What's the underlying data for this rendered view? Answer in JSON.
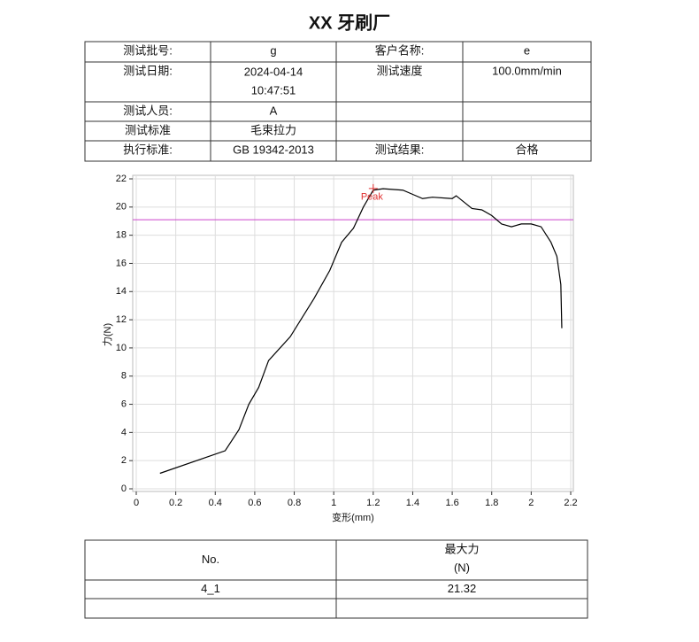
{
  "header": {
    "title": "XX 牙刷厂"
  },
  "info_table": {
    "rows": [
      [
        "测试批号:",
        "g",
        "客户名称:",
        "e"
      ],
      [
        "测试日期:",
        [
          "2024-04-14",
          "10:47:51"
        ],
        "测试速度",
        "100.0mm/min"
      ],
      [
        "测试人员:",
        "A",
        null,
        null
      ],
      [
        "测试标准",
        "毛束拉力",
        null,
        null
      ],
      [
        "执行标准:",
        "GB 19342-2013",
        "测试结果:",
        "合格"
      ]
    ]
  },
  "chart_data": {
    "type": "line",
    "x_label": "变形(mm)",
    "y_label": "力(N)",
    "x": [
      0.12,
      0.45,
      0.52,
      0.57,
      0.62,
      0.67,
      0.78,
      0.9,
      0.98,
      1.04,
      1.1,
      1.15,
      1.2,
      1.25,
      1.35,
      1.4,
      1.45,
      1.5,
      1.6,
      1.62,
      1.7,
      1.75,
      1.8,
      1.85,
      1.9,
      1.95,
      2.0,
      2.05,
      2.1,
      2.13,
      2.15,
      2.155
    ],
    "series": [
      {
        "color": "#000000",
        "values": [
          1.1,
          2.7,
          4.2,
          6,
          7.2,
          9.1,
          10.8,
          13.5,
          15.5,
          17.5,
          18.5,
          20,
          21.2,
          21.3,
          21.2,
          20.9,
          20.6,
          20.7,
          20.6,
          20.8,
          19.9,
          19.8,
          19.4,
          18.8,
          18.6,
          18.8,
          18.8,
          18.6,
          17.5,
          16.5,
          14.5,
          11.4
        ]
      }
    ],
    "reference_line": {
      "value": 19.1,
      "color": "#cc44cc"
    },
    "peak": {
      "label": "Peak",
      "x": 1.2,
      "y": 21.32,
      "color": "#e03030"
    },
    "xlim": [
      0,
      2.2
    ],
    "xticks": [
      0,
      0.2,
      0.4,
      0.6,
      0.8,
      1,
      1.2,
      1.4,
      1.6,
      1.8,
      2,
      2.2
    ],
    "ylim": [
      0,
      22
    ],
    "yticks": [
      0,
      2,
      4,
      6,
      8,
      10,
      12,
      14,
      16,
      18,
      20,
      22
    ],
    "grid": true
  },
  "result_table": {
    "header": [
      "No.",
      [
        "最大力",
        "(N)"
      ]
    ],
    "rows": [
      [
        "4_1",
        "21.32"
      ]
    ]
  }
}
